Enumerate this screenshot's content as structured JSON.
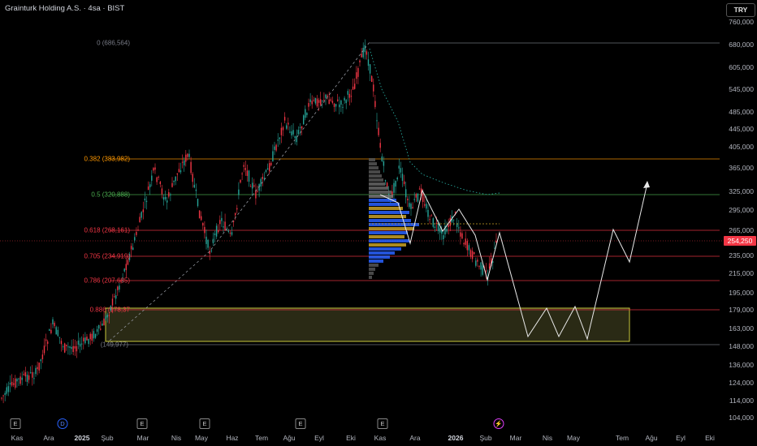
{
  "header": {
    "title": "Grainturk Holding A.S. · 4sa · BIST",
    "currency_button": "TRY"
  },
  "price_axis": {
    "ticks": [
      "760,000",
      "680,000",
      "605,000",
      "545,000",
      "485,000",
      "445,000",
      "405,000",
      "365,000",
      "325,000",
      "295,000",
      "265,000",
      "235,000",
      "215,000",
      "195,000",
      "179,000",
      "163,000",
      "148,000",
      "136,000",
      "124,000",
      "114,000",
      "104,000"
    ],
    "current_price": "254,250",
    "current_price_color": "#f23645"
  },
  "time_axis": {
    "labels": [
      "Kas",
      "Ara",
      "2025",
      "Şub",
      "Mar",
      "Nis",
      "May",
      "Haz",
      "Tem",
      "Ağu",
      "Eyl",
      "Eki",
      "Kas",
      "Ara",
      "2026",
      "Şub",
      "Mar",
      "Nis",
      "May",
      "Tem",
      "Ağu",
      "Eyl",
      "Eki"
    ]
  },
  "fib_levels": [
    {
      "label": "0 (686,564)",
      "color": "#787b86"
    },
    {
      "label": "0.382 (383,982)",
      "color": "#ff9800"
    },
    {
      "label": "0.5 (320,888)",
      "color": "#4caf50"
    },
    {
      "label": "0.618 (268,161)",
      "color": "#f23645"
    },
    {
      "label": "0.705 (234,919)",
      "color": "#f23645"
    },
    {
      "label": "0.786 (207,685)",
      "color": "#f23645"
    },
    {
      "label": "0.886 (178,37",
      "color": "#f23645"
    },
    {
      "label": "(149,977)",
      "color": "#787b86"
    }
  ],
  "events": [
    {
      "glyph": "E",
      "kind": "earnings-icon"
    },
    {
      "glyph": "D",
      "kind": "dividend-icon"
    },
    {
      "glyph": "E",
      "kind": "earnings-icon"
    },
    {
      "glyph": "E",
      "kind": "earnings-icon"
    },
    {
      "glyph": "E",
      "kind": "earnings-icon"
    },
    {
      "glyph": "E",
      "kind": "earnings-icon"
    },
    {
      "glyph": "⚡",
      "kind": "split-icon"
    }
  ],
  "colors": {
    "up": "#26a69a",
    "down": "#f23645",
    "background": "#000000"
  }
}
